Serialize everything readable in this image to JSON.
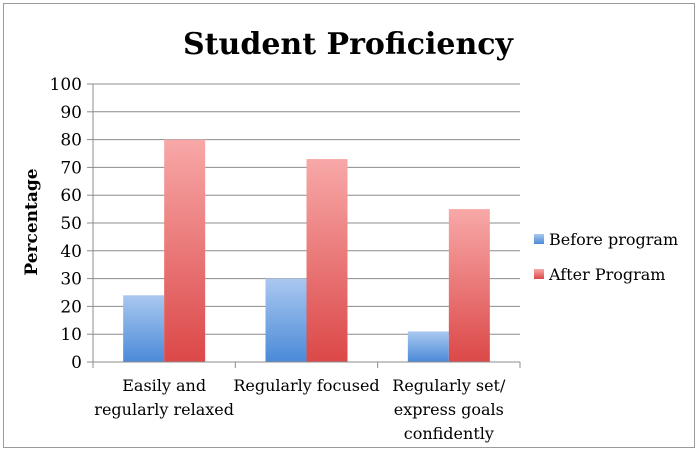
{
  "chart_data": {
    "type": "bar",
    "title": "Student Proficiency",
    "xlabel": "",
    "ylabel": "Percentage",
    "ylim": [
      0,
      100
    ],
    "yticks": [
      0,
      10,
      20,
      30,
      40,
      50,
      60,
      70,
      80,
      90,
      100
    ],
    "grid": true,
    "legend_position": "right",
    "categories": [
      [
        "Easily and",
        "regularly relaxed"
      ],
      [
        "Regularly focused"
      ],
      [
        "Regularly set/",
        "express goals",
        "confidently"
      ]
    ],
    "series": [
      {
        "name": "Before program",
        "values": [
          24,
          30,
          11
        ],
        "color": "#5a94dc"
      },
      {
        "name": "After Program",
        "values": [
          80,
          73,
          55
        ],
        "color": "#e65a5a"
      }
    ]
  }
}
